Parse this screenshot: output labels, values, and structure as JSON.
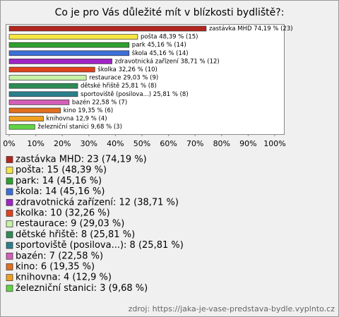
{
  "chart_data": {
    "type": "bar",
    "orientation": "horizontal",
    "title": "Co je pro Vás důležité mít v blízkosti bydliště?:",
    "values": [
      74.19,
      48.39,
      45.16,
      45.16,
      38.71,
      32.26,
      29.03,
      25.81,
      25.81,
      22.58,
      19.35,
      12.9,
      9.68
    ],
    "counts": [
      23,
      15,
      14,
      14,
      12,
      10,
      9,
      8,
      8,
      7,
      6,
      4,
      3
    ],
    "value_labels": [
      "zastávka MHD 74,19 % (23)",
      "pošta 48,39 % (15)",
      "park 45,16 % (14)",
      "škola 45,16 % (14)",
      "zdravotnická zařízení 38,71 % (12)",
      "školka 32,26 % (10)",
      "restaurace 29,03 % (9)",
      "dětské hřiště 25,81 % (8)",
      "sportoviště (posilova...) 25,81 % (8)",
      "bazén 22,58 % (7)",
      "kino 19,35 % (6)",
      "knihovna 12,9 % (4)",
      "železniční stanici 9,68 % (3)"
    ],
    "legend_labels": [
      "zastávka MHD: 23 (74,19 %)",
      "pošta: 15 (48,39 %)",
      "park: 14 (45,16 %)",
      "škola: 14 (45,16 %)",
      "zdravotnická zařízení: 12 (38,71 %)",
      "školka: 10 (32,26 %)",
      "restaurace: 9 (29,03 %)",
      "dětské hřiště: 8 (25,81 %)",
      "sportoviště (posilova...): 8 (25,81 %)",
      "bazén: 7 (22,58 %)",
      "kino: 6 (19,35 %)",
      "knihovna: 4 (12,9 %)",
      "železniční stanici: 3 (9,68 %)"
    ],
    "colors": [
      "#b3261e",
      "#f5e642",
      "#2ea02e",
      "#3d6fd8",
      "#a024c4",
      "#e0421e",
      "#c8f0a6",
      "#2e8b57",
      "#2a7f8a",
      "#d35fb7",
      "#e07020",
      "#f0a020",
      "#62d444"
    ],
    "xlim": [
      0,
      100
    ],
    "xticks": [
      {
        "value": 0,
        "label": "0%"
      },
      {
        "value": 10,
        "label": "10%"
      },
      {
        "value": 20,
        "label": "20%"
      },
      {
        "value": 30,
        "label": "30%"
      },
      {
        "value": 40,
        "label": "40%"
      },
      {
        "value": 50,
        "label": "50%"
      },
      {
        "value": 60,
        "label": "60%"
      },
      {
        "value": 70,
        "label": "70%"
      },
      {
        "value": 80,
        "label": "80%"
      },
      {
        "value": 90,
        "label": "90%"
      },
      {
        "value": 100,
        "label": "100%"
      }
    ],
    "source": "zdroj: https://jaka-je-vase-predstava-bydle.vyplnto.cz"
  }
}
